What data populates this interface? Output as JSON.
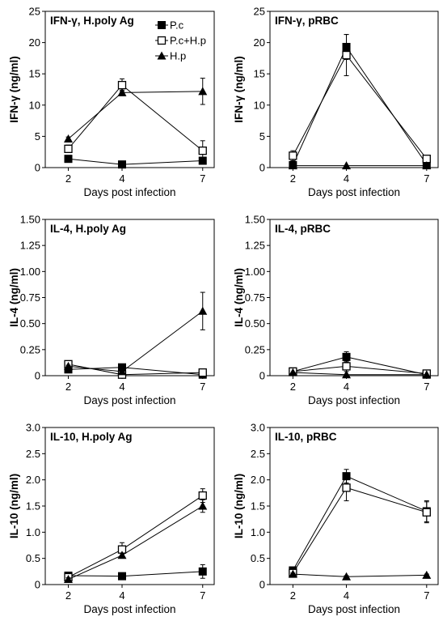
{
  "chart_data": [
    {
      "type": "line",
      "title": "IFN-γ, H.poly Ag",
      "xlabel": "Days post infection",
      "ylabel": "IFN-γ (ng/ml)",
      "categories": [
        "2",
        "4",
        "7"
      ],
      "yticks": [
        "0",
        "5",
        "10",
        "15",
        "20",
        "25"
      ],
      "ylim": [
        0,
        25
      ],
      "legend": "top-right",
      "series": [
        {
          "name": "P.c",
          "marker": "filled-square",
          "values": [
            1.4,
            0.5,
            1.1
          ],
          "errors": [
            0.2,
            0.1,
            0.2
          ]
        },
        {
          "name": "P.c+H.p",
          "marker": "open-square",
          "values": [
            3.0,
            13.2,
            2.7
          ],
          "errors": [
            0.6,
            1.0,
            1.6
          ]
        },
        {
          "name": "H.p",
          "marker": "filled-triangle",
          "values": [
            4.6,
            12.0,
            12.2
          ],
          "errors": [
            0.3,
            0.4,
            2.1
          ]
        }
      ]
    },
    {
      "type": "line",
      "title": "IFN-γ, pRBC",
      "xlabel": "Days post infection",
      "ylabel": "IFN-γ (ng/ml)",
      "categories": [
        "2",
        "4",
        "7"
      ],
      "yticks": [
        "0",
        "5",
        "10",
        "15",
        "20",
        "25"
      ],
      "ylim": [
        0,
        25
      ],
      "series": [
        {
          "name": "P.c",
          "marker": "filled-square",
          "values": [
            0.4,
            19.3,
            0.5
          ],
          "errors": [
            0.1,
            2.0,
            0.1
          ]
        },
        {
          "name": "P.c+H.p",
          "marker": "open-square",
          "values": [
            1.9,
            18.0,
            1.4
          ],
          "errors": [
            0.8,
            3.3,
            0.5
          ]
        },
        {
          "name": "H.p",
          "marker": "filled-triangle",
          "values": [
            0.3,
            0.3,
            0.3
          ],
          "errors": [
            0,
            0,
            0
          ]
        }
      ]
    },
    {
      "type": "line",
      "title": "IL-4, H.poly Ag",
      "xlabel": "Days post infection",
      "ylabel": "IL-4 (ng/ml)",
      "categories": [
        "2",
        "4",
        "7"
      ],
      "yticks": [
        "0",
        "0.25",
        "0.50",
        "0.75",
        "1.00",
        "1.25",
        "1.50"
      ],
      "ylim": [
        0,
        1.5
      ],
      "series": [
        {
          "name": "P.c",
          "marker": "filled-square",
          "values": [
            0.06,
            0.08,
            0.01
          ],
          "errors": [
            0.01,
            0.03,
            0.01
          ]
        },
        {
          "name": "P.c+H.p",
          "marker": "open-square",
          "values": [
            0.11,
            0.01,
            0.03
          ],
          "errors": [
            0.02,
            0.01,
            0.01
          ]
        },
        {
          "name": "H.p",
          "marker": "filled-triangle",
          "values": [
            0.09,
            0.04,
            0.62
          ],
          "errors": [
            0.01,
            0.01,
            0.18
          ]
        }
      ]
    },
    {
      "type": "line",
      "title": "IL-4, pRBC",
      "xlabel": "Days post infection",
      "ylabel": "IL-4 (ng/ml)",
      "categories": [
        "2",
        "4",
        "7"
      ],
      "yticks": [
        "0",
        "0.25",
        "0.50",
        "0.75",
        "1.00",
        "1.25",
        "1.50"
      ],
      "ylim": [
        0,
        1.5
      ],
      "series": [
        {
          "name": "P.c",
          "marker": "filled-square",
          "values": [
            0.04,
            0.18,
            0.01
          ],
          "errors": [
            0.01,
            0.05,
            0.01
          ]
        },
        {
          "name": "P.c+H.p",
          "marker": "open-square",
          "values": [
            0.04,
            0.09,
            0.02
          ],
          "errors": [
            0.01,
            0.05,
            0.01
          ]
        },
        {
          "name": "H.p",
          "marker": "filled-triangle",
          "values": [
            0.03,
            0.01,
            0.01
          ],
          "errors": [
            0,
            0,
            0
          ]
        }
      ]
    },
    {
      "type": "line",
      "title": "IL-10, H.poly Ag",
      "xlabel": "Days post infection",
      "ylabel": "IL-10 (ng/ml)",
      "categories": [
        "2",
        "4",
        "7"
      ],
      "yticks": [
        "0",
        "0.5",
        "1.0",
        "1.5",
        "2.0",
        "2.5",
        "3.0"
      ],
      "ylim": [
        0,
        3.0
      ],
      "series": [
        {
          "name": "P.c",
          "marker": "filled-square",
          "values": [
            0.17,
            0.16,
            0.25
          ],
          "errors": [
            0.04,
            0.03,
            0.13
          ]
        },
        {
          "name": "P.c+H.p",
          "marker": "open-square",
          "values": [
            0.14,
            0.67,
            1.7
          ],
          "errors": [
            0.05,
            0.13,
            0.13
          ]
        },
        {
          "name": "H.p",
          "marker": "filled-triangle",
          "values": [
            0.1,
            0.56,
            1.5
          ],
          "errors": [
            0.03,
            0.04,
            0.12
          ]
        }
      ]
    },
    {
      "type": "line",
      "title": "IL-10, pRBC",
      "xlabel": "Days post infection",
      "ylabel": "IL-10 (ng/ml)",
      "categories": [
        "2",
        "4",
        "7"
      ],
      "yticks": [
        "0",
        "0.5",
        "1.0",
        "1.5",
        "2.0",
        "2.5",
        "3.0"
      ],
      "ylim": [
        0,
        3.0
      ],
      "series": [
        {
          "name": "P.c",
          "marker": "filled-square",
          "values": [
            0.27,
            2.07,
            1.4
          ],
          "errors": [
            0.04,
            0.13,
            0.2
          ]
        },
        {
          "name": "P.c+H.p",
          "marker": "open-square",
          "values": [
            0.22,
            1.85,
            1.38
          ],
          "errors": [
            0.04,
            0.25,
            0.2
          ]
        },
        {
          "name": "H.p",
          "marker": "filled-triangle",
          "values": [
            0.2,
            0.15,
            0.18
          ],
          "errors": [
            0.02,
            0.02,
            0.02
          ]
        }
      ]
    }
  ],
  "legend": {
    "items": [
      {
        "label": "P.c",
        "marker": "filled-square"
      },
      {
        "label": "P.c+H.p",
        "marker": "open-square"
      },
      {
        "label": "H.p",
        "marker": "filled-triangle"
      }
    ]
  }
}
